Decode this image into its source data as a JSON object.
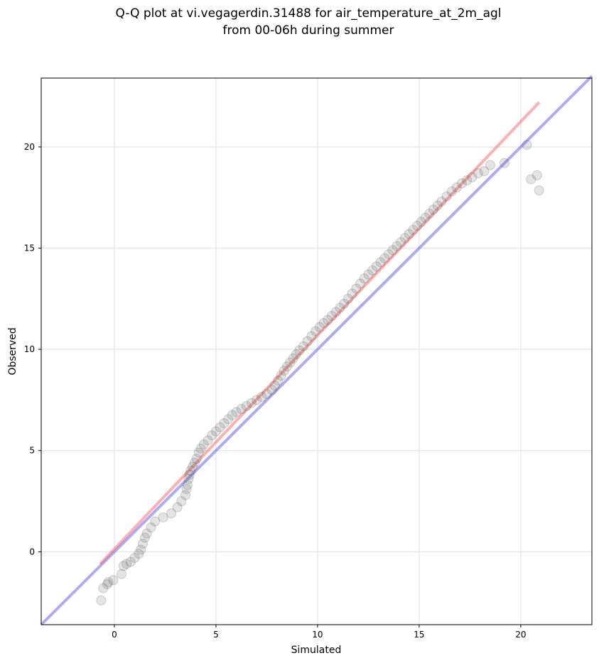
{
  "chart_data": {
    "type": "scatter",
    "title": [
      "Q-Q plot at vi.vegagerdin.31488 for air_temperature_at_2m_agl",
      "from 00-06h during summer"
    ],
    "xlabel": "Simulated",
    "ylabel": "Observed",
    "xlim": [
      -3.6,
      23.5
    ],
    "ylim": [
      -3.6,
      23.4
    ],
    "xticks": [
      0,
      5,
      10,
      15,
      20
    ],
    "yticks": [
      0,
      5,
      10,
      15,
      20
    ],
    "grid": true,
    "legend": "none",
    "colors": {
      "points": "#555555",
      "fit_line": "#ff4d4d",
      "identity_line": "#6666ee"
    },
    "points": {
      "x": [
        -0.65,
        -0.55,
        -0.35,
        -0.3,
        -0.05,
        0.35,
        0.45,
        0.6,
        0.8,
        1.0,
        1.2,
        1.3,
        1.4,
        1.5,
        1.6,
        1.8,
        2.0,
        2.4,
        2.8,
        3.1,
        3.3,
        3.5,
        3.55,
        3.6,
        3.65,
        3.7,
        3.75,
        3.85,
        3.95,
        4.05,
        4.15,
        4.25,
        4.4,
        4.6,
        4.8,
        5.0,
        5.2,
        5.4,
        5.6,
        5.8,
        6.0,
        6.25,
        6.5,
        6.75,
        7.0,
        7.25,
        7.5,
        7.75,
        7.9,
        8.05,
        8.2,
        8.35,
        8.5,
        8.65,
        8.8,
        8.95,
        9.1,
        9.3,
        9.5,
        9.7,
        9.9,
        10.1,
        10.3,
        10.5,
        10.7,
        10.9,
        11.1,
        11.3,
        11.5,
        11.7,
        11.9,
        12.1,
        12.3,
        12.5,
        12.7,
        12.9,
        13.1,
        13.3,
        13.5,
        13.7,
        13.9,
        14.1,
        14.3,
        14.5,
        14.7,
        14.9,
        15.1,
        15.3,
        15.5,
        15.7,
        15.9,
        16.1,
        16.35,
        16.6,
        16.85,
        17.1,
        17.35,
        17.6,
        17.9,
        18.2,
        18.5,
        19.2,
        20.3,
        20.5,
        20.8,
        20.9
      ],
      "y": [
        -2.4,
        -1.8,
        -1.6,
        -1.5,
        -1.4,
        -1.1,
        -0.7,
        -0.6,
        -0.5,
        -0.3,
        -0.1,
        0.1,
        0.4,
        0.7,
        0.9,
        1.2,
        1.5,
        1.7,
        1.9,
        2.2,
        2.5,
        2.8,
        3.1,
        3.3,
        3.6,
        3.8,
        4.0,
        4.2,
        4.4,
        4.6,
        4.9,
        5.1,
        5.3,
        5.5,
        5.75,
        5.95,
        6.15,
        6.35,
        6.55,
        6.75,
        6.9,
        7.05,
        7.2,
        7.35,
        7.5,
        7.65,
        7.8,
        8.0,
        8.2,
        8.45,
        8.7,
        8.95,
        9.15,
        9.35,
        9.55,
        9.75,
        9.95,
        10.15,
        10.4,
        10.65,
        10.9,
        11.1,
        11.3,
        11.45,
        11.65,
        11.85,
        12.05,
        12.25,
        12.5,
        12.75,
        13.0,
        13.25,
        13.5,
        13.7,
        13.9,
        14.1,
        14.3,
        14.5,
        14.7,
        14.9,
        15.1,
        15.3,
        15.5,
        15.7,
        15.9,
        16.1,
        16.3,
        16.5,
        16.7,
        16.9,
        17.1,
        17.3,
        17.55,
        17.8,
        18.0,
        18.2,
        18.35,
        18.5,
        18.7,
        18.8,
        19.1,
        19.2,
        20.1,
        18.4,
        18.6,
        17.85
      ],
      "note_order": "sorted quantiles"
    },
    "fit_line": {
      "x": [
        -0.7,
        20.9
      ],
      "y": [
        -0.6,
        22.2
      ]
    },
    "identity_line": {
      "x": [
        -3.6,
        23.5
      ],
      "y": [
        -3.6,
        23.5
      ]
    }
  }
}
